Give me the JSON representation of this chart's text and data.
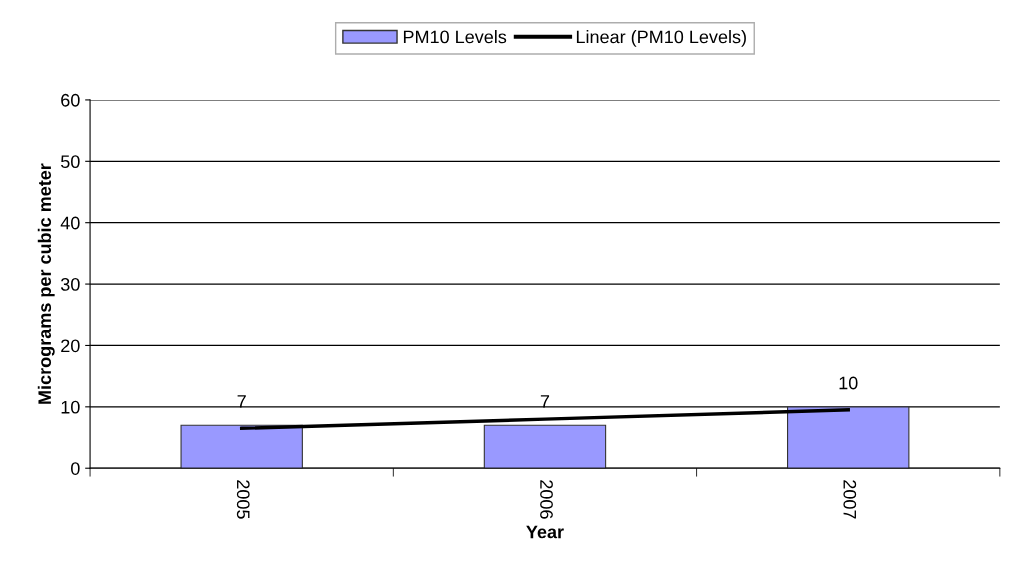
{
  "chart_data": {
    "type": "bar",
    "xlabel": "Year",
    "ylabel": "Micrograms per cubic meter",
    "categories": [
      "2005",
      "2006",
      "2007"
    ],
    "series": [
      {
        "name": "PM10 Levels",
        "color": "#9999ff",
        "values": [
          7,
          7,
          10
        ],
        "value_labels": [
          "7",
          "7",
          "10"
        ]
      },
      {
        "name": "Linear (PM10 Levels)",
        "type": "line",
        "color": "#000000",
        "values": [
          6.5,
          8,
          9.5
        ]
      }
    ],
    "ylim": [
      0,
      60
    ],
    "yticks": [
      0,
      10,
      20,
      30,
      40,
      50,
      60
    ],
    "grid": "y",
    "legend": "top",
    "line_style": "solid",
    "marker": "none"
  }
}
